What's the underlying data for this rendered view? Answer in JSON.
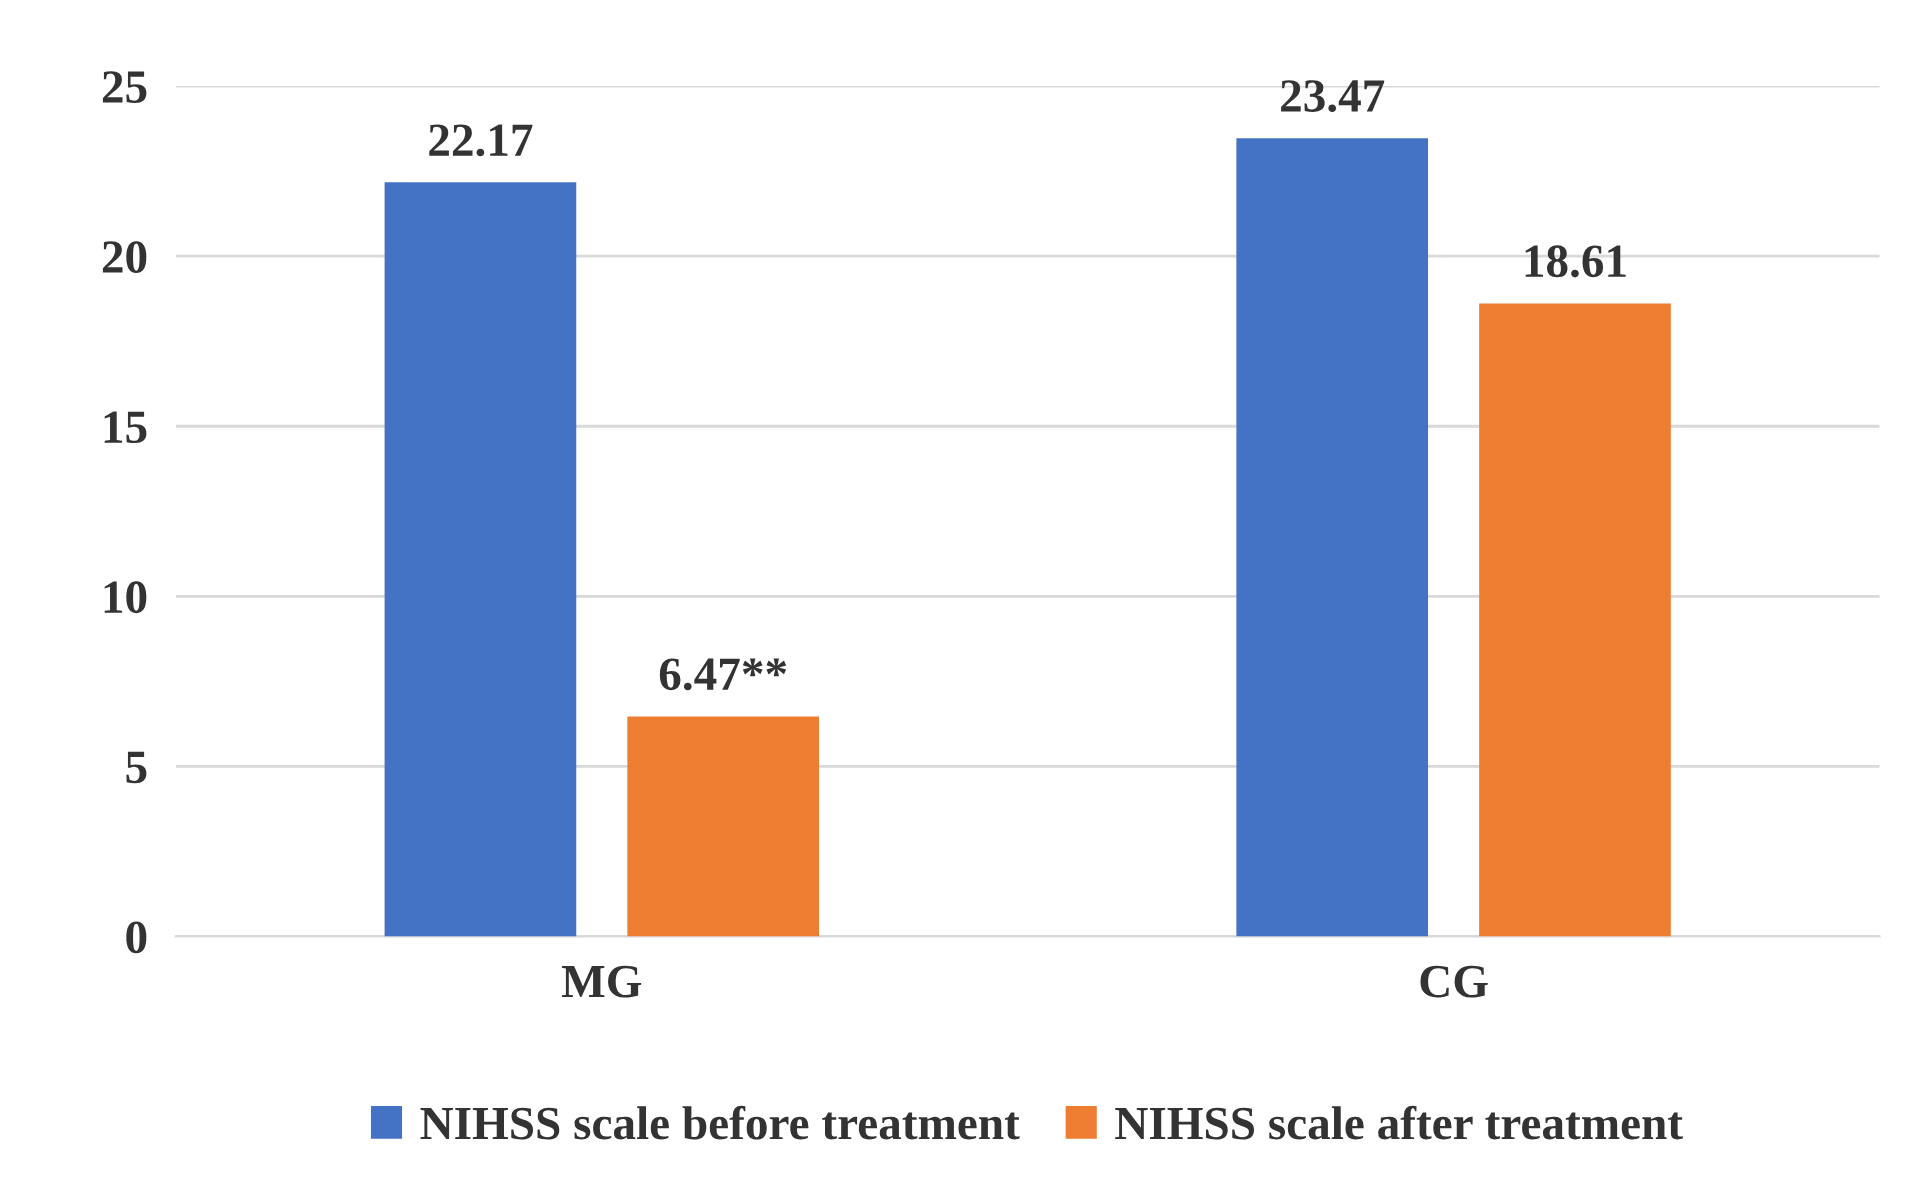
{
  "chart_data": {
    "type": "bar",
    "categories": [
      "MG",
      "CG"
    ],
    "series": [
      {
        "name": "NIHSS scale before treatment",
        "color": "#4472c4",
        "values": [
          22.17,
          23.47
        ],
        "value_labels": [
          "22.17",
          "23.47"
        ]
      },
      {
        "name": "NIHSS scale after treatment",
        "color": "#ed7d31",
        "values": [
          6.47,
          18.61
        ],
        "value_labels": [
          "6.47**",
          "18.61"
        ]
      }
    ],
    "ylim": [
      0,
      25
    ],
    "yticks": [
      0,
      5,
      10,
      15,
      20,
      25
    ],
    "grid": "y",
    "legend": "bottom"
  }
}
